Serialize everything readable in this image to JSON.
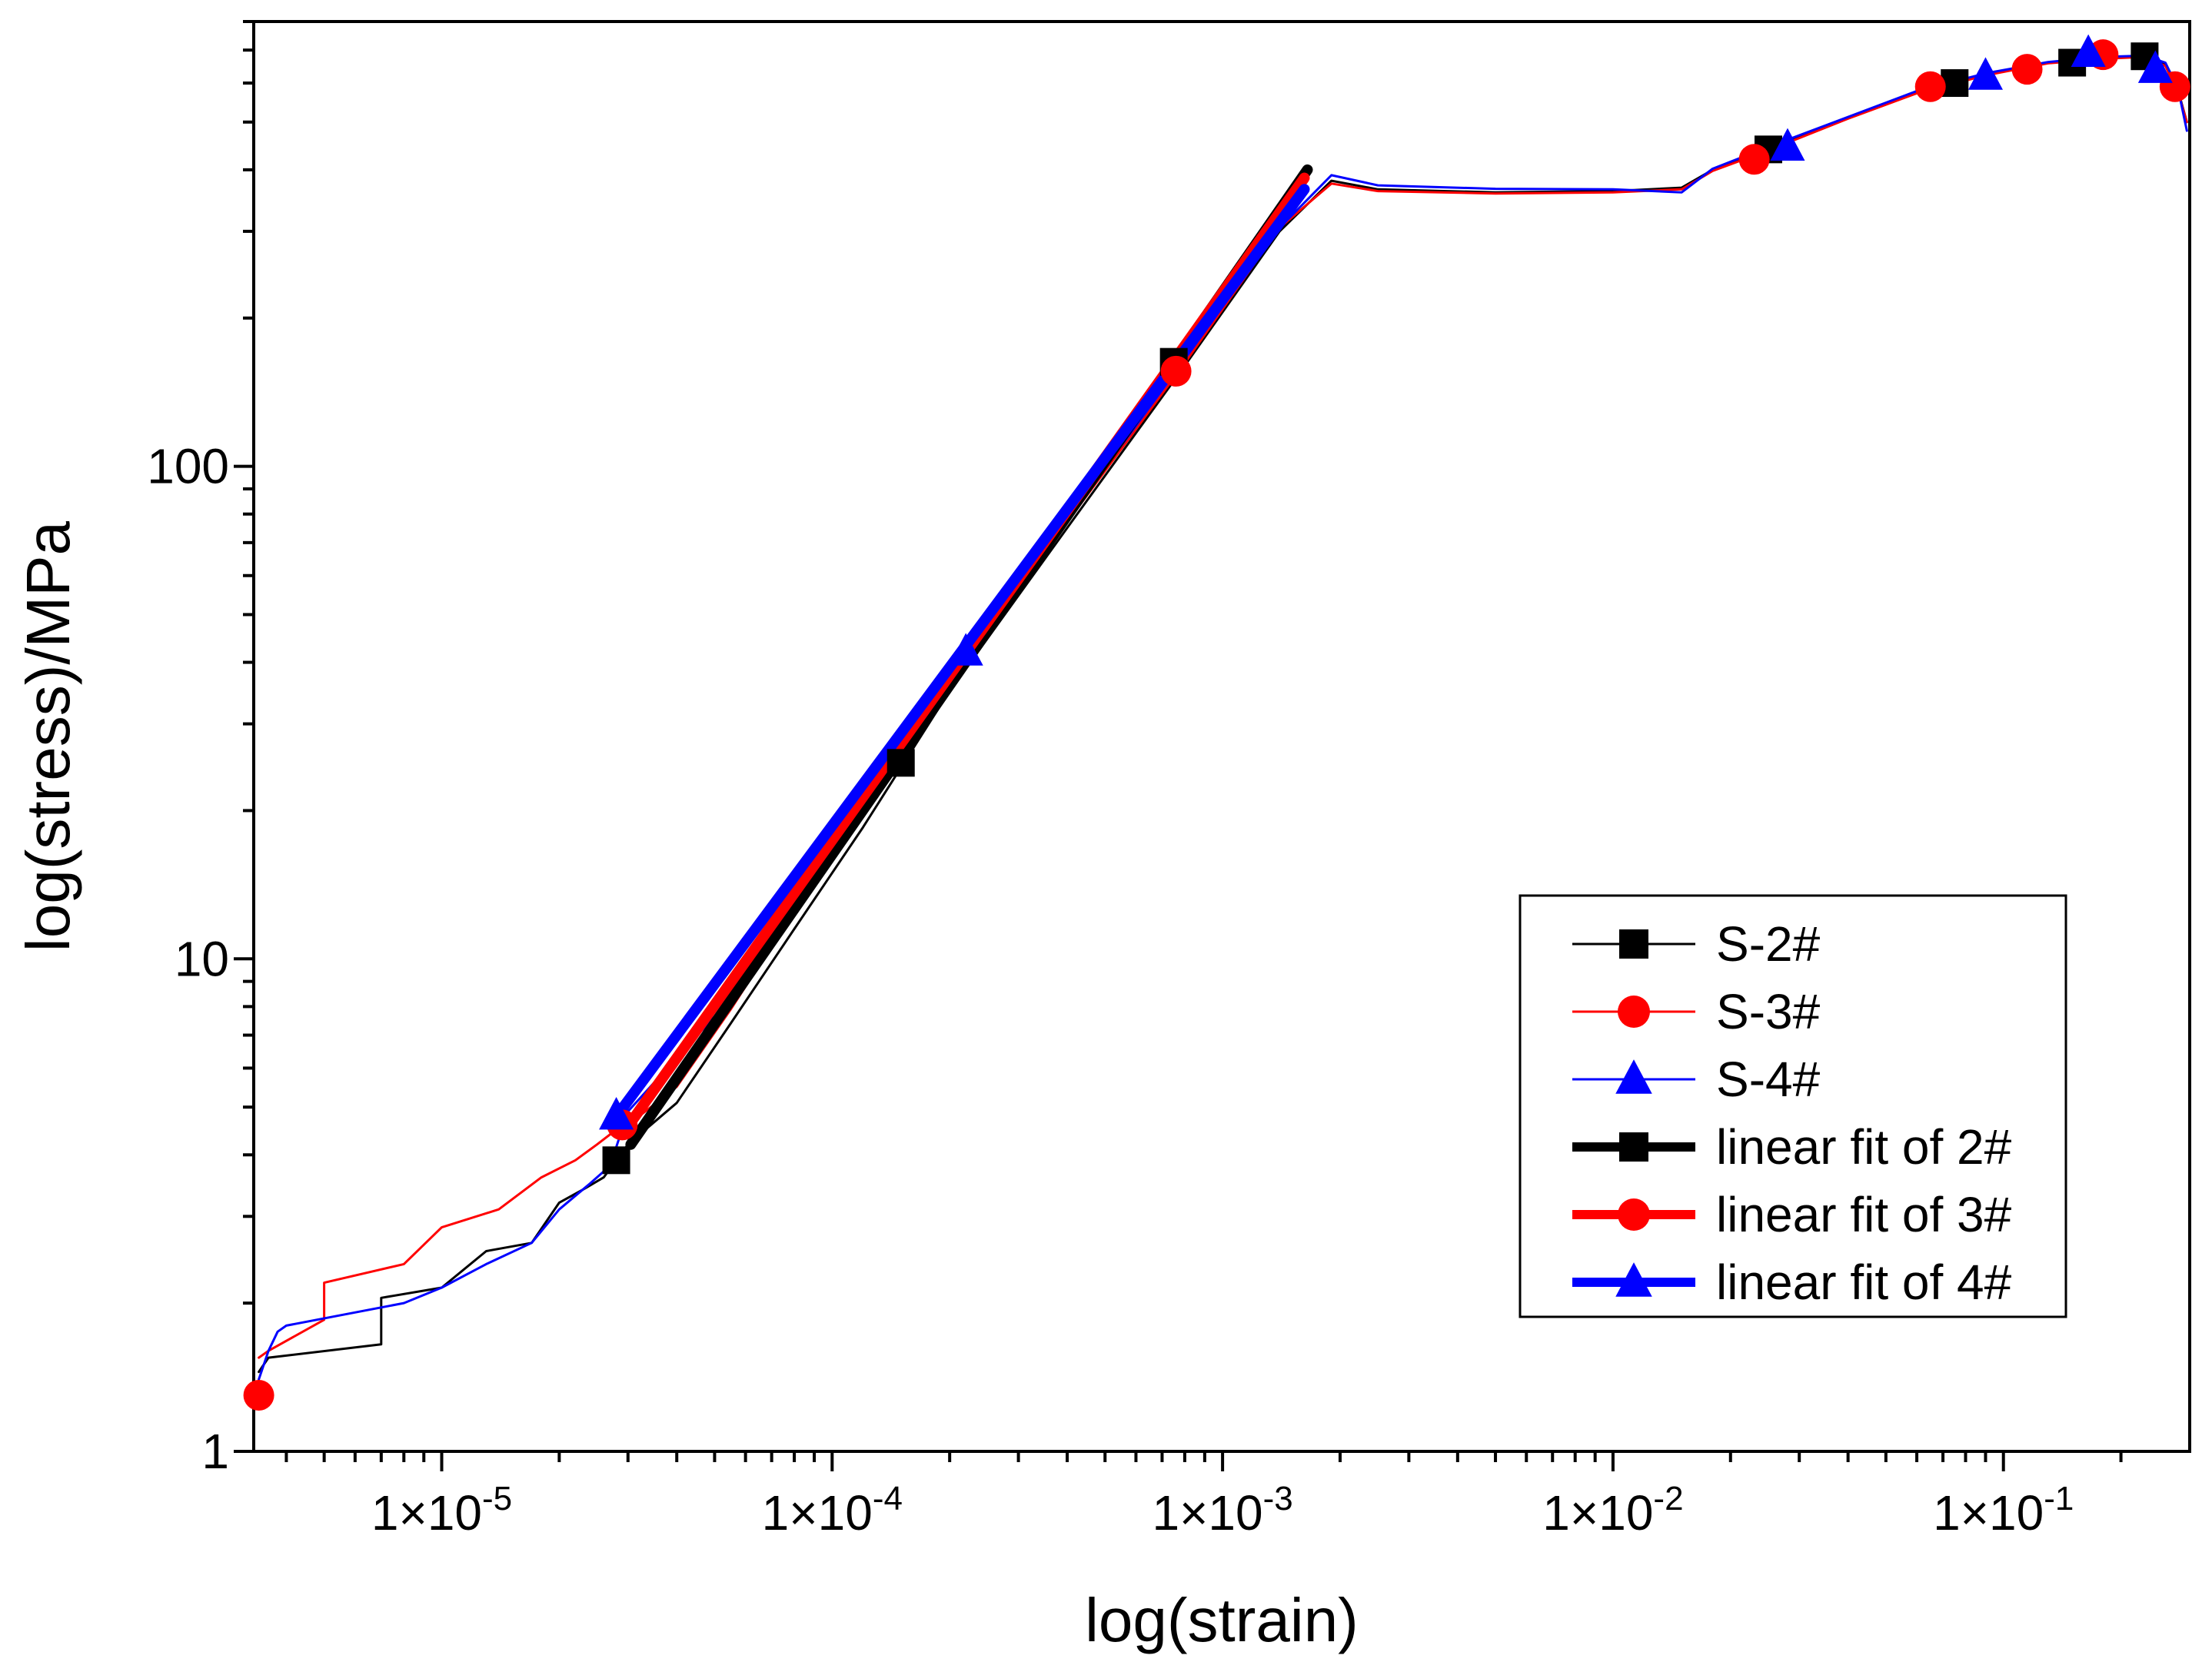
{
  "chart_data": {
    "type": "line",
    "title": "",
    "xlabel": "log(strain)",
    "ylabel": "log(stress)/MPa",
    "xscale": "log",
    "yscale": "log",
    "xlim": [
      3.3e-06,
      0.3
    ],
    "ylim": [
      1,
      800
    ],
    "x_ticks": [
      {
        "value": 1e-05,
        "base": "1×10",
        "exp": "-5"
      },
      {
        "value": 0.0001,
        "base": "1×10",
        "exp": "-4"
      },
      {
        "value": 0.001,
        "base": "1×10",
        "exp": "-3"
      },
      {
        "value": 0.01,
        "base": "1×10",
        "exp": "-2"
      },
      {
        "value": 0.1,
        "base": "1×10",
        "exp": "-1"
      }
    ],
    "y_ticks": [
      {
        "value": 1,
        "label": "1"
      },
      {
        "value": 10,
        "label": "10"
      },
      {
        "value": 100,
        "label": "100"
      }
    ],
    "legend_position": "lower-right",
    "series": [
      {
        "name": "S-2#",
        "color": "#000000",
        "marker": "square",
        "style": "thin",
        "x": [
          3.4e-06,
          3.6e-06,
          7e-06,
          7e-06,
          1e-05,
          1.3e-05,
          1.7e-05,
          2e-05,
          2.3e-05,
          2.6e-05,
          2.8e-05,
          3e-05,
          4e-05,
          5.5e-05,
          8e-05,
          0.00012,
          0.0002,
          0.0004,
          0.0008,
          0.0014,
          0.0019,
          0.0025,
          0.005,
          0.01,
          0.015,
          0.018,
          0.025,
          0.04,
          0.06,
          0.09,
          0.13,
          0.18,
          0.23,
          0.26,
          0.28,
          0.295
        ],
        "y": [
          1.45,
          1.55,
          1.65,
          2.05,
          2.15,
          2.55,
          2.65,
          3.2,
          3.4,
          3.6,
          3.9,
          4.2,
          5.1,
          7.4,
          11.5,
          18.5,
          35,
          75,
          160,
          300,
          380,
          365,
          360,
          362,
          368,
          400,
          440,
          510,
          575,
          625,
          660,
          675,
          680,
          655,
          580,
          500
        ],
        "markers_x": [
          2.8e-05,
          0.00015,
          0.00075,
          0.025,
          0.075,
          0.15,
          0.23
        ],
        "markers_y": [
          3.9,
          25,
          163,
          440,
          600,
          660,
          680
        ]
      },
      {
        "name": "S-3#",
        "color": "#ff0000",
        "marker": "circle",
        "style": "thin",
        "x": [
          3.4e-06,
          3.6e-06,
          5e-06,
          5e-06,
          8e-06,
          1e-05,
          1.4e-05,
          1.8e-05,
          2.2e-05,
          2.5e-05,
          2.8e-05,
          3e-05,
          4e-05,
          5.5e-05,
          8e-05,
          0.00012,
          0.0002,
          0.0004,
          0.0008,
          0.0014,
          0.0019,
          0.0025,
          0.005,
          0.01,
          0.015,
          0.018,
          0.025,
          0.04,
          0.06,
          0.09,
          0.13,
          0.18,
          0.23,
          0.26,
          0.28,
          0.295
        ],
        "y": [
          1.55,
          1.6,
          1.85,
          2.2,
          2.4,
          2.85,
          3.1,
          3.6,
          3.9,
          4.2,
          4.5,
          4.6,
          5.5,
          7.9,
          12.5,
          19.5,
          36,
          77,
          162,
          305,
          375,
          362,
          358,
          360,
          365,
          398,
          438,
          508,
          572,
          622,
          658,
          672,
          678,
          650,
          575,
          500
        ],
        "markers_x": [
          3.4e-06,
          2.9e-05,
          0.00076,
          0.023,
          0.065,
          0.115,
          0.18,
          0.275
        ],
        "markers_y": [
          1.3,
          4.6,
          156,
          420,
          590,
          640,
          685,
          590
        ]
      },
      {
        "name": "S-4#",
        "color": "#0000ff",
        "marker": "triangle",
        "style": "thin",
        "x": [
          3.4e-06,
          3.6e-06,
          3.8e-06,
          4e-06,
          8e-06,
          1e-05,
          1.3e-05,
          1.7e-05,
          2e-05,
          2.4e-05,
          2.7e-05,
          3e-05,
          4e-05,
          5.5e-05,
          8e-05,
          0.00012,
          0.0002,
          0.0004,
          0.0008,
          0.0014,
          0.0019,
          0.0025,
          0.005,
          0.01,
          0.015,
          0.018,
          0.025,
          0.04,
          0.06,
          0.09,
          0.13,
          0.18,
          0.23,
          0.26,
          0.28,
          0.295
        ],
        "y": [
          1.4,
          1.6,
          1.75,
          1.8,
          2.0,
          2.15,
          2.4,
          2.65,
          3.1,
          3.5,
          3.8,
          4.9,
          6.3,
          8.3,
          12.8,
          20.5,
          38,
          78,
          165,
          305,
          390,
          372,
          366,
          365,
          360,
          402,
          445,
          512,
          578,
          628,
          662,
          678,
          682,
          660,
          585,
          480
        ],
        "markers_x": [
          2.8e-05,
          0.00022,
          0.028,
          0.09,
          0.165,
          0.245
        ],
        "markers_y": [
          4.8,
          42,
          445,
          620,
          690,
          640
        ]
      },
      {
        "name": "linear fit of 2#",
        "color": "#000000",
        "marker": "square",
        "style": "thick",
        "x": [
          3.05e-05,
          0.00165
        ],
        "y": [
          4.2,
          400
        ]
      },
      {
        "name": "linear fit of 3#",
        "color": "#ff0000",
        "marker": "circle",
        "style": "thick",
        "x": [
          2.9e-05,
          0.00162
        ],
        "y": [
          4.4,
          385
        ]
      },
      {
        "name": "linear fit of 4#",
        "color": "#0000ff",
        "marker": "triangle",
        "style": "thick",
        "x": [
          2.7e-05,
          0.00162
        ],
        "y": [
          4.6,
          365
        ]
      }
    ]
  }
}
